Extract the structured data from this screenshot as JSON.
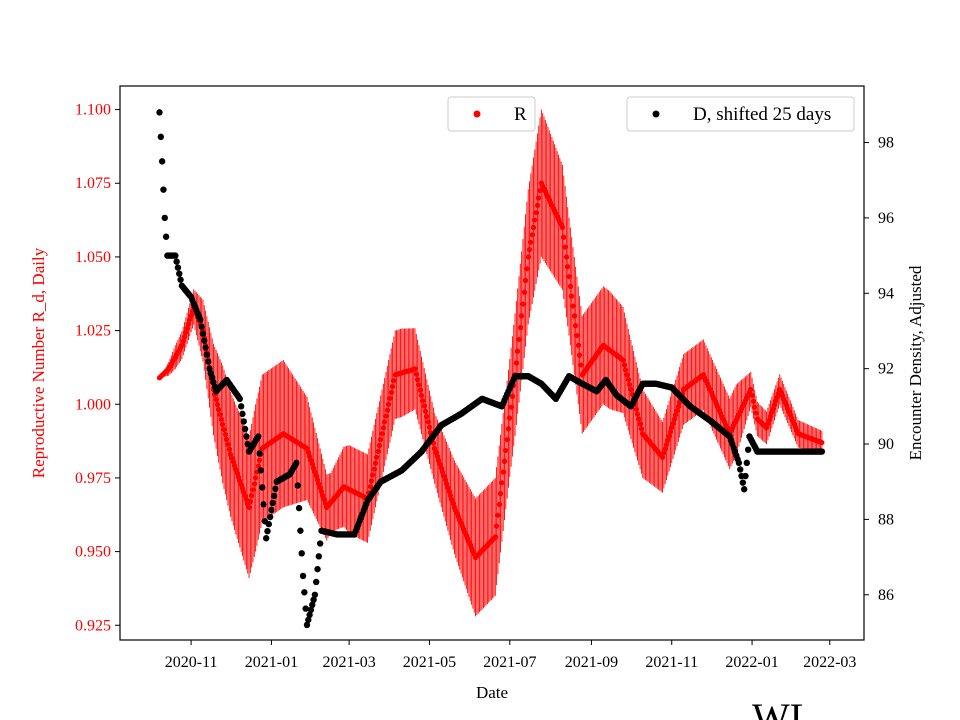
{
  "colors": {
    "r_series": "#ff0000",
    "d_series": "#000000",
    "axis": "#000000"
  },
  "watermark_text": "WL",
  "chart_data": {
    "type": "scatter",
    "xlabel": "Date",
    "ylabel_left": "Reproductive Number R_d, Daily",
    "ylabel_right": "Encounter Density, Adjusted",
    "x_ticks": [
      "2020-11",
      "2021-01",
      "2021-03",
      "2021-05",
      "2021-07",
      "2021-09",
      "2021-11",
      "2022-01",
      "2022-03"
    ],
    "y_left_ticks": [
      "0.925",
      "0.950",
      "0.975",
      "1.000",
      "1.025",
      "1.050",
      "1.075",
      "1.100"
    ],
    "y_right_ticks": [
      "86",
      "88",
      "90",
      "92",
      "94",
      "96",
      "98"
    ],
    "xlim": [
      "2020-09-08",
      "2022-03-27"
    ],
    "ylim_left": [
      0.92,
      1.108
    ],
    "ylim_right": [
      84.8,
      99.5
    ],
    "grid": false,
    "legend_left": {
      "label": "R",
      "placement": "upper center"
    },
    "legend_right": {
      "label": "D, shifted 25 days",
      "placement": "upper right"
    },
    "series": [
      {
        "name": "R",
        "axis": "left",
        "marker": "point-with-errorbars",
        "error_bar_halfwidth_anchors": [
          [
            "2020-10-08",
            0.0
          ],
          [
            "2020-10-20",
            0.004
          ],
          [
            "2020-11-03",
            0.006
          ],
          [
            "2020-11-25",
            0.02
          ],
          [
            "2020-12-20",
            0.025
          ],
          [
            "2021-01-10",
            0.025
          ],
          [
            "2021-02-15",
            0.01
          ],
          [
            "2021-03-01",
            0.015
          ],
          [
            "2021-04-10",
            0.015
          ],
          [
            "2021-05-05",
            0.012
          ],
          [
            "2021-06-05",
            0.02
          ],
          [
            "2021-07-01",
            0.02
          ],
          [
            "2021-07-25",
            0.025
          ],
          [
            "2021-08-15",
            0.02
          ],
          [
            "2021-09-15",
            0.02
          ],
          [
            "2021-10-25",
            0.012
          ],
          [
            "2021-12-20",
            0.012
          ],
          [
            "2021-12-31",
            0.006
          ],
          [
            "2022-02-23",
            0.004
          ]
        ],
        "anchors": [
          [
            "2020-10-08",
            1.009
          ],
          [
            "2020-10-15",
            1.012
          ],
          [
            "2020-10-25",
            1.02
          ],
          [
            "2020-11-03",
            1.033
          ],
          [
            "2020-11-10",
            1.025
          ],
          [
            "2020-11-18",
            1.005
          ],
          [
            "2020-12-01",
            0.983
          ],
          [
            "2020-12-15",
            0.965
          ],
          [
            "2020-12-25",
            0.985
          ],
          [
            "2021-01-10",
            0.99
          ],
          [
            "2021-01-28",
            0.985
          ],
          [
            "2021-02-12",
            0.965
          ],
          [
            "2021-02-25",
            0.972
          ],
          [
            "2021-03-15",
            0.968
          ],
          [
            "2021-04-05",
            1.01
          ],
          [
            "2021-04-20",
            1.012
          ],
          [
            "2021-05-05",
            0.985
          ],
          [
            "2021-05-20",
            0.965
          ],
          [
            "2021-06-05",
            0.948
          ],
          [
            "2021-06-20",
            0.955
          ],
          [
            "2021-07-05",
            1.01
          ],
          [
            "2021-07-15",
            1.05
          ],
          [
            "2021-07-25",
            1.075
          ],
          [
            "2021-08-10",
            1.06
          ],
          [
            "2021-08-25",
            1.01
          ],
          [
            "2021-09-10",
            1.02
          ],
          [
            "2021-09-25",
            1.015
          ],
          [
            "2021-10-10",
            0.99
          ],
          [
            "2021-10-25",
            0.982
          ],
          [
            "2021-11-10",
            1.005
          ],
          [
            "2021-11-25",
            1.01
          ],
          [
            "2021-12-15",
            0.99
          ],
          [
            "2021-12-31",
            1.005
          ],
          [
            "2022-01-05",
            0.995
          ],
          [
            "2022-01-12",
            0.992
          ],
          [
            "2022-01-22",
            1.005
          ],
          [
            "2022-02-05",
            0.99
          ],
          [
            "2022-02-23",
            0.987
          ]
        ]
      },
      {
        "name": "D, shifted 25 days",
        "axis": "right",
        "marker": "point",
        "anchors": [
          [
            "2020-10-08",
            98.8
          ],
          [
            "2020-10-10",
            97.5
          ],
          [
            "2020-10-12",
            96.0
          ],
          [
            "2020-10-14",
            95.0
          ],
          [
            "2020-10-20",
            95.0
          ],
          [
            "2020-10-25",
            94.2
          ],
          [
            "2020-11-01",
            93.9
          ],
          [
            "2020-11-08",
            93.3
          ],
          [
            "2020-11-15",
            92.0
          ],
          [
            "2020-11-20",
            91.4
          ],
          [
            "2020-11-28",
            91.7
          ],
          [
            "2020-12-08",
            91.2
          ],
          [
            "2020-12-15",
            89.8
          ],
          [
            "2020-12-22",
            90.2
          ],
          [
            "2020-12-28",
            87.5
          ],
          [
            "2021-01-05",
            89.0
          ],
          [
            "2021-01-15",
            89.2
          ],
          [
            "2021-01-20",
            89.5
          ],
          [
            "2021-01-25",
            86.5
          ],
          [
            "2021-01-28",
            85.2
          ],
          [
            "2021-02-03",
            86.0
          ],
          [
            "2021-02-08",
            87.7
          ],
          [
            "2021-02-20",
            87.6
          ],
          [
            "2021-03-05",
            87.6
          ],
          [
            "2021-03-15",
            88.5
          ],
          [
            "2021-03-25",
            89.0
          ],
          [
            "2021-04-10",
            89.3
          ],
          [
            "2021-04-25",
            89.8
          ],
          [
            "2021-05-10",
            90.5
          ],
          [
            "2021-05-25",
            90.8
          ],
          [
            "2021-06-10",
            91.2
          ],
          [
            "2021-06-25",
            91.0
          ],
          [
            "2021-07-05",
            91.8
          ],
          [
            "2021-07-15",
            91.8
          ],
          [
            "2021-07-25",
            91.6
          ],
          [
            "2021-08-05",
            91.2
          ],
          [
            "2021-08-15",
            91.8
          ],
          [
            "2021-08-25",
            91.6
          ],
          [
            "2021-09-05",
            91.4
          ],
          [
            "2021-09-12",
            91.7
          ],
          [
            "2021-09-20",
            91.3
          ],
          [
            "2021-10-01",
            91.0
          ],
          [
            "2021-10-10",
            91.6
          ],
          [
            "2021-10-20",
            91.6
          ],
          [
            "2021-11-01",
            91.5
          ],
          [
            "2021-11-15",
            91.0
          ],
          [
            "2021-12-01",
            90.6
          ],
          [
            "2021-12-15",
            90.2
          ],
          [
            "2021-12-22",
            89.5
          ],
          [
            "2021-12-26",
            88.8
          ],
          [
            "2021-12-30",
            90.2
          ],
          [
            "2022-01-05",
            89.8
          ],
          [
            "2022-02-23",
            89.8
          ]
        ]
      }
    ]
  }
}
